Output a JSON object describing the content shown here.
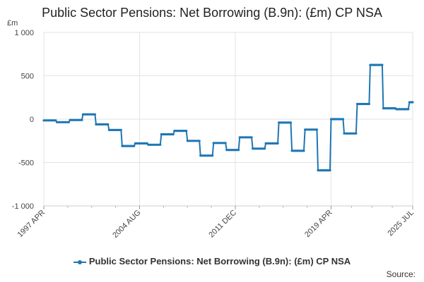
{
  "chart_data": {
    "type": "line",
    "title": "Public Sector Pensions: Net Borrowing (B.9n): (£m) CP NSA",
    "ylabel": "£m",
    "xlabel": "",
    "ylim": [
      -1000,
      1000
    ],
    "yticks": [
      "1 000",
      "500",
      "0",
      "-500",
      "-1 000"
    ],
    "xticks": [
      "1997 APR",
      "2004 AUG",
      "2011 DEC",
      "2019 APR",
      "2025 JUL"
    ],
    "grid": true,
    "legend_position": "bottom",
    "source_label": "Source:",
    "series": [
      {
        "name": "Public Sector Pensions: Net Borrowing (B.9n): (£m) CP NSA",
        "color": "#1f77b4",
        "points": [
          [
            "1997-04",
            -15
          ],
          [
            "1998-03",
            -15
          ],
          [
            "1998-04",
            -35
          ],
          [
            "1999-03",
            -35
          ],
          [
            "1999-04",
            -10
          ],
          [
            "2000-03",
            -10
          ],
          [
            "2000-04",
            55
          ],
          [
            "2001-03",
            55
          ],
          [
            "2001-04",
            -60
          ],
          [
            "2002-03",
            -60
          ],
          [
            "2002-04",
            -125
          ],
          [
            "2003-03",
            -125
          ],
          [
            "2003-04",
            -310
          ],
          [
            "2004-03",
            -310
          ],
          [
            "2004-04",
            -280
          ],
          [
            "2005-03",
            -280
          ],
          [
            "2005-04",
            -295
          ],
          [
            "2006-03",
            -295
          ],
          [
            "2006-04",
            -175
          ],
          [
            "2007-03",
            -175
          ],
          [
            "2007-04",
            -135
          ],
          [
            "2008-03",
            -135
          ],
          [
            "2008-04",
            -250
          ],
          [
            "2009-03",
            -250
          ],
          [
            "2009-04",
            -420
          ],
          [
            "2010-03",
            -420
          ],
          [
            "2010-04",
            -275
          ],
          [
            "2011-03",
            -275
          ],
          [
            "2011-04",
            -355
          ],
          [
            "2012-03",
            -355
          ],
          [
            "2012-04",
            -210
          ],
          [
            "2013-03",
            -210
          ],
          [
            "2013-04",
            -340
          ],
          [
            "2014-03",
            -340
          ],
          [
            "2014-04",
            -280
          ],
          [
            "2015-03",
            -280
          ],
          [
            "2015-04",
            -40
          ],
          [
            "2016-03",
            -40
          ],
          [
            "2016-04",
            -365
          ],
          [
            "2017-03",
            -365
          ],
          [
            "2017-04",
            -120
          ],
          [
            "2018-03",
            -120
          ],
          [
            "2018-04",
            -590
          ],
          [
            "2019-03",
            -590
          ],
          [
            "2019-04",
            0
          ],
          [
            "2020-03",
            0
          ],
          [
            "2020-04",
            -165
          ],
          [
            "2021-03",
            -165
          ],
          [
            "2021-04",
            175
          ],
          [
            "2022-03",
            175
          ],
          [
            "2022-04",
            625
          ],
          [
            "2023-03",
            625
          ],
          [
            "2023-04",
            125
          ],
          [
            "2024-03",
            125
          ],
          [
            "2024-04",
            115
          ],
          [
            "2025-03",
            115
          ],
          [
            "2025-04",
            195
          ],
          [
            "2025-07",
            195
          ]
        ]
      }
    ]
  }
}
